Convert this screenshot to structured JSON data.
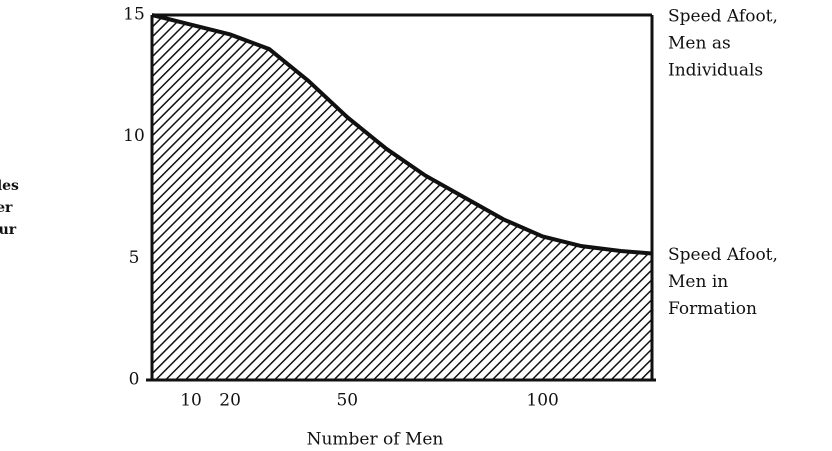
{
  "chart_data": {
    "type": "area",
    "xlabel": "Number of Men",
    "ylabel": [
      "Miles",
      "Per",
      "Hour"
    ],
    "x": [
      0,
      10,
      20,
      30,
      40,
      50,
      60,
      70,
      80,
      90,
      100,
      110,
      120,
      128
    ],
    "series": [
      {
        "name": [
          "Speed Afoot,",
          "Men as",
          "Individuals"
        ],
        "color": "#111111",
        "values": [
          15,
          15,
          15,
          15,
          15,
          15,
          15,
          15,
          15,
          15,
          15,
          15,
          15,
          15
        ]
      },
      {
        "name": [
          "Speed Afoot,",
          "Men in",
          "Formation"
        ],
        "color": "#111111",
        "values": [
          15,
          14.6,
          14.2,
          13.6,
          12.3,
          10.8,
          9.5,
          8.4,
          7.5,
          6.6,
          5.9,
          5.5,
          5.3,
          5.2
        ]
      }
    ],
    "xlim": [
      0,
      128
    ],
    "ylim": [
      0,
      15
    ],
    "xticks": [
      10,
      20,
      50,
      100
    ],
    "yticks": [
      0,
      5,
      10,
      15
    ],
    "grid": false
  }
}
